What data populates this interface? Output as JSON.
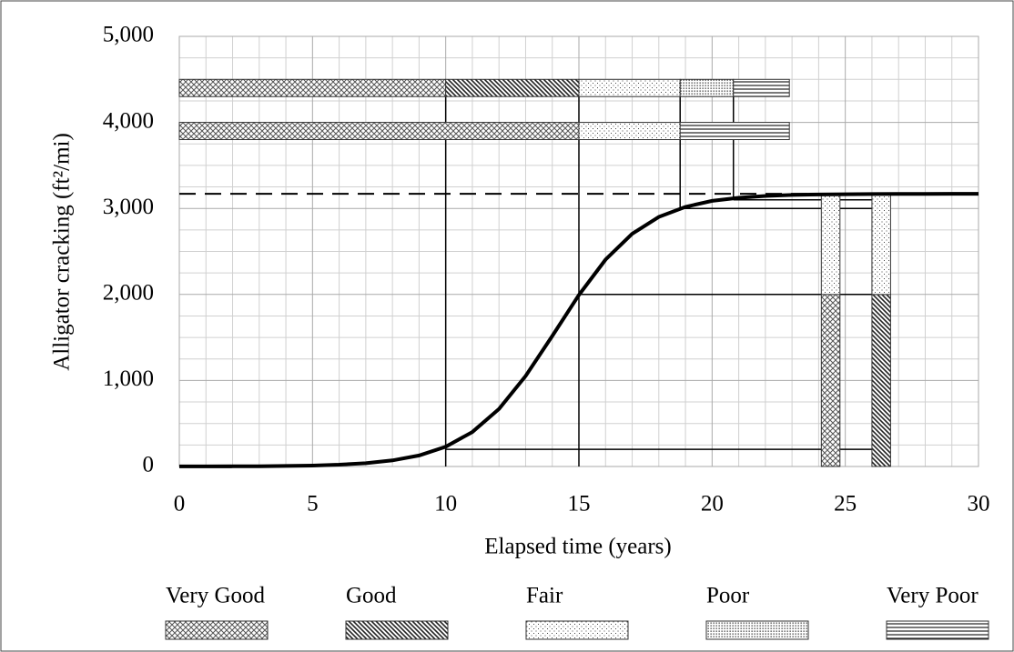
{
  "chart_data": {
    "type": "line",
    "xlabel": "Elapsed time (years)",
    "ylabel": "Alligator cracking (ft²/mi)",
    "x": [
      0,
      1,
      2,
      3,
      4,
      5,
      6,
      7,
      8,
      9,
      10,
      11,
      12,
      13,
      14,
      15,
      16,
      17,
      18,
      19,
      20,
      21,
      22,
      23,
      24,
      25,
      26,
      27,
      28,
      29,
      30
    ],
    "series": [
      {
        "color": "#000000",
        "values": [
          1,
          1,
          2,
          3,
          6,
          11,
          21,
          38,
          71,
          128,
          230,
          401,
          669,
          1052,
          1517,
          1994,
          2405,
          2705,
          2901,
          3018,
          3088,
          3124,
          3145,
          3157,
          3162,
          3165,
          3167,
          3168,
          3169,
          3170,
          3170
        ]
      }
    ],
    "xlim": [
      0,
      30
    ],
    "ylim": [
      0,
      5000
    ],
    "xticks": [
      0,
      5,
      10,
      15,
      20,
      25,
      30
    ],
    "yticks": [
      0,
      {
        "value": 1000,
        "label": "1,000"
      },
      {
        "value": 2000,
        "label": "2,000"
      },
      {
        "value": 3000,
        "label": "3,000"
      },
      {
        "value": 4000,
        "label": "4,000"
      },
      {
        "value": 5000,
        "label": "5,000"
      }
    ],
    "grid": true,
    "threshold": 3170,
    "legend": [
      "Very Good",
      "Good",
      "Fair",
      "Poor",
      "Very Poor"
    ],
    "segments": [
      {
        "class": 0,
        "x0": 0,
        "x1": 10,
        "y0": 4300,
        "y1": 4500
      },
      {
        "class": 1,
        "x0": 10,
        "x1": 15,
        "y0": 4300,
        "y1": 4500
      },
      {
        "class": 2,
        "x0": 15,
        "x1": 18.8,
        "y0": 4300,
        "y1": 4500
      },
      {
        "class": 3,
        "x0": 18.8,
        "x1": 20.8,
        "y0": 4300,
        "y1": 4500
      },
      {
        "class": 4,
        "x0": 20.8,
        "x1": 22.9,
        "y0": 4300,
        "y1": 4500
      },
      {
        "class": 0,
        "x0": 0,
        "x1": 15,
        "y0": 3800,
        "y1": 4000
      },
      {
        "class": 2,
        "x0": 15,
        "x1": 18.8,
        "y0": 3800,
        "y1": 4000
      },
      {
        "class": 4,
        "x0": 18.8,
        "x1": 22.9,
        "y0": 3800,
        "y1": 4000
      },
      {
        "class": 0,
        "x0": 24.1,
        "x1": 24.8,
        "y0": 0,
        "y1": 2000
      },
      {
        "class": 2,
        "x0": 24.1,
        "x1": 24.8,
        "y0": 2000,
        "y1": 3170
      },
      {
        "class": 1,
        "x0": 26.0,
        "x1": 26.7,
        "y0": 0,
        "y1": 2000
      },
      {
        "class": 2,
        "x0": 26.0,
        "x1": 26.7,
        "y0": 2000,
        "y1": 3170
      }
    ],
    "guides": [
      {
        "x0": 10,
        "x1": 10,
        "y0": 0,
        "y1": 4500
      },
      {
        "x0": 15,
        "x1": 15,
        "y0": 0,
        "y1": 4500
      },
      {
        "x0": 18.8,
        "x1": 18.8,
        "y0": 3000,
        "y1": 4500
      },
      {
        "x0": 20.8,
        "x1": 20.8,
        "y0": 3100,
        "y1": 4500
      },
      {
        "x0": 10,
        "x1": 26.7,
        "y0": 200,
        "y1": 200
      },
      {
        "x0": 15,
        "x1": 26.7,
        "y0": 2000,
        "y1": 2000
      },
      {
        "x0": 18.8,
        "x1": 26.7,
        "y0": 3000,
        "y1": 3000
      },
      {
        "x0": 20.8,
        "x1": 26.7,
        "y0": 3100,
        "y1": 3100
      }
    ]
  }
}
